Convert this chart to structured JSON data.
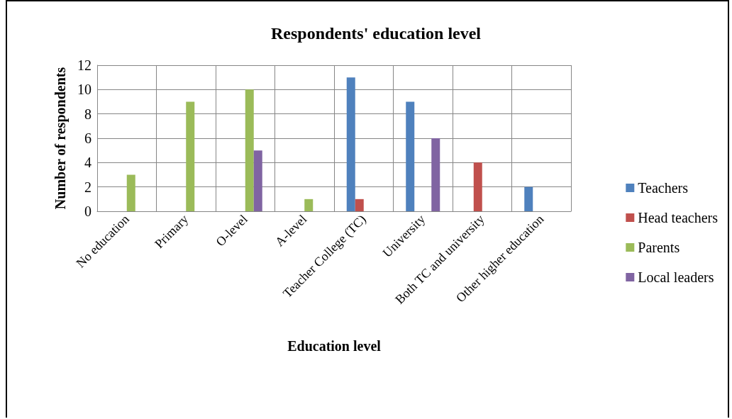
{
  "chart_data": {
    "type": "bar",
    "title": "Respondents' education level",
    "xlabel": "Education level",
    "ylabel": "Number of respondents",
    "categories": [
      "No education",
      "Primary",
      "O-level",
      "A-level",
      "Teacher College (TC)",
      "University",
      "Both TC and university",
      "Other higher education"
    ],
    "series": [
      {
        "name": "Teachers",
        "color": "#4f81bd",
        "values": [
          0,
          0,
          0,
          0,
          11,
          9,
          0,
          2
        ]
      },
      {
        "name": "Head teachers",
        "color": "#c0504d",
        "values": [
          0,
          0,
          0,
          0,
          1,
          0,
          4,
          0
        ]
      },
      {
        "name": "Parents",
        "color": "#9bbb59",
        "values": [
          3,
          9,
          10,
          1,
          0,
          0,
          0,
          0
        ]
      },
      {
        "name": "Local leaders",
        "color": "#8064a2",
        "values": [
          0,
          0,
          5,
          0,
          0,
          6,
          0,
          0
        ]
      }
    ],
    "ylim": [
      0,
      12
    ],
    "yticks": [
      0,
      2,
      4,
      6,
      8,
      10,
      12
    ],
    "grid": true,
    "legend": "right"
  }
}
